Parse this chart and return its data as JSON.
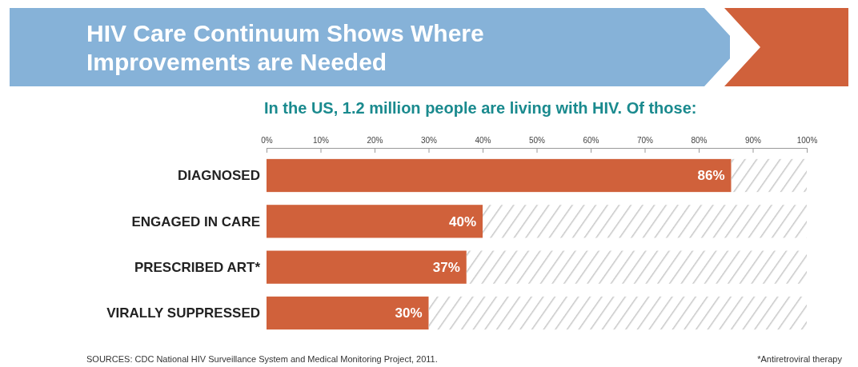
{
  "chart_data": {
    "type": "bar",
    "orientation": "horizontal",
    "stacked": true,
    "title": "HIV Care Continuum Shows Where Improvements are Needed",
    "subtitle": "In the US, 1.2 million people are living with HIV.  Of those:",
    "categories": [
      "DIAGNOSED",
      "ENGAGED IN CARE",
      "PRESCRIBED ART*",
      "VIRALLY SUPPRESSED"
    ],
    "series": [
      {
        "color": "#d0613b",
        "values": [
          86,
          40,
          37,
          30
        ],
        "value_labels": [
          "86%",
          "40%",
          "37%",
          "30%"
        ]
      },
      {
        "color": "#c8c8c8",
        "values": [
          14,
          60,
          63,
          70
        ]
      }
    ],
    "xlim": [
      0,
      100
    ],
    "xticks": [
      {
        "value": 0,
        "label": "0%"
      },
      {
        "value": 10,
        "label": "10%"
      },
      {
        "value": 20,
        "label": "20%"
      },
      {
        "value": 30,
        "label": "30%"
      },
      {
        "value": 40,
        "label": "40%"
      },
      {
        "value": 50,
        "label": "50%"
      },
      {
        "value": 60,
        "label": "60%"
      },
      {
        "value": 70,
        "label": "70%"
      },
      {
        "value": 80,
        "label": "80%"
      },
      {
        "value": 90,
        "label": "90%"
      },
      {
        "value": 100,
        "label": "100%"
      }
    ],
    "annotations": [
      "SOURCES: CDC National HIV Surveillance System and Medical Monitoring Project, 2011.",
      "*Antiretroviral therapy"
    ]
  }
}
